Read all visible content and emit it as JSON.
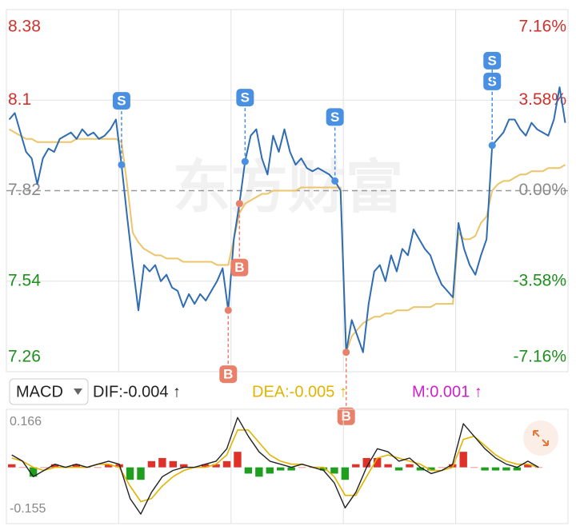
{
  "chart_data": [
    {
      "type": "line",
      "watermark": "东方财富",
      "ylim": [
        7.26,
        8.38
      ],
      "yticks": [
        7.26,
        7.54,
        7.82,
        8.1,
        8.38
      ],
      "y2lim": [
        -7.16,
        7.16
      ],
      "y2ticks": [
        {
          "value": -7.16,
          "label": "-7.16%"
        },
        {
          "value": -3.58,
          "label": "-3.58%"
        },
        {
          "value": 0,
          "label": "0.00%"
        },
        {
          "value": 3.58,
          "label": "3.58%"
        },
        {
          "value": 7.16,
          "label": "7.16%"
        }
      ],
      "base": 7.82,
      "grid": true,
      "up_color": "#d0312d",
      "down_color": "#1f8f1f",
      "flat_color": "#8a8a8a",
      "series": [
        {
          "color": "#2f6db3",
          "values": [
            8.04,
            8.06,
            8.0,
            7.94,
            7.92,
            7.84,
            7.92,
            7.95,
            7.94,
            7.98,
            7.99,
            8.0,
            7.98,
            8.01,
            7.99,
            8.0,
            7.98,
            7.99,
            8.01,
            8.04,
            7.9,
            7.74,
            7.59,
            7.45,
            7.59,
            7.57,
            7.59,
            7.54,
            7.56,
            7.52,
            7.51,
            7.46,
            7.5,
            7.47,
            7.5,
            7.48,
            7.51,
            7.54,
            7.58,
            7.45,
            7.67,
            7.78,
            7.91,
            7.99,
            8.01,
            7.92,
            7.87,
            7.99,
            7.94,
            8.01,
            7.94,
            7.9,
            7.92,
            7.89,
            7.88,
            7.89,
            7.88,
            7.87,
            7.85,
            7.82,
            7.32,
            7.42,
            7.37,
            7.32,
            7.47,
            7.57,
            7.59,
            7.54,
            7.62,
            7.57,
            7.64,
            7.62,
            7.7,
            7.67,
            7.64,
            7.62,
            7.57,
            7.53,
            7.51,
            7.49,
            7.72,
            7.64,
            7.59,
            7.56,
            7.62,
            7.67,
            7.96,
            7.98,
            8.0,
            8.04,
            8.04,
            8.01,
            7.99,
            8.03,
            8.01,
            8.0,
            7.99,
            8.04,
            8.14,
            8.03
          ]
        },
        {
          "color": "#ecc46a",
          "values": [
            8.01,
            8.0,
            7.99,
            7.98,
            7.98,
            7.97,
            7.97,
            7.97,
            7.97,
            7.97,
            7.97,
            7.97,
            7.98,
            7.98,
            7.98,
            7.98,
            7.98,
            7.98,
            7.98,
            7.98,
            7.97,
            7.84,
            7.69,
            7.66,
            7.64,
            7.63,
            7.62,
            7.62,
            7.61,
            7.61,
            7.61,
            7.6,
            7.6,
            7.6,
            7.6,
            7.6,
            7.6,
            7.59,
            7.59,
            7.59,
            7.67,
            7.75,
            7.78,
            7.79,
            7.8,
            7.81,
            7.81,
            7.82,
            7.82,
            7.82,
            7.82,
            7.82,
            7.83,
            7.83,
            7.83,
            7.83,
            7.83,
            7.83,
            7.83,
            7.83,
            7.32,
            7.37,
            7.39,
            7.41,
            7.42,
            7.43,
            7.43,
            7.44,
            7.44,
            7.45,
            7.45,
            7.45,
            7.46,
            7.46,
            7.46,
            7.46,
            7.47,
            7.47,
            7.47,
            7.47,
            7.69,
            7.67,
            7.67,
            7.68,
            7.72,
            7.74,
            7.82,
            7.84,
            7.85,
            7.85,
            7.86,
            7.87,
            7.87,
            7.88,
            7.88,
            7.88,
            7.89,
            7.89,
            7.89,
            7.9
          ]
        }
      ],
      "markers": [
        {
          "label": "S",
          "x": 20,
          "value": 7.9,
          "color": "#4a90e2"
        },
        {
          "label": "B",
          "x": 39,
          "value": 7.45,
          "color": "#e8806a"
        },
        {
          "label": "B",
          "x": 41,
          "value": 7.78,
          "color": "#e8806a"
        },
        {
          "label": "S",
          "x": 42,
          "value": 7.91,
          "color": "#4a90e2"
        },
        {
          "label": "S",
          "x": 58,
          "value": 7.85,
          "color": "#4a90e2"
        },
        {
          "label": "B",
          "x": 60,
          "value": 7.32,
          "color": "#e8806a"
        },
        {
          "label": "S",
          "x": 86,
          "value": 7.96,
          "color": "#4a90e2"
        },
        {
          "label": "S",
          "x": 86,
          "value": 7.96,
          "color": "#4a90e2"
        }
      ]
    },
    {
      "type": "macd",
      "indicator": "MACD",
      "ylim": [
        -0.155,
        0.166
      ],
      "yticks": [
        -0.155,
        0.166
      ],
      "up_color": "#e0302a",
      "down_color": "#1f9e1f",
      "series": [
        {
          "name": "DIF:-0.004 ↑",
          "color": "#222222",
          "values": [
            0.04,
            0.02,
            -0.03,
            -0.01,
            0.01,
            0.0,
            0.01,
            0.0,
            0.01,
            0.02,
            0.01,
            -0.1,
            -0.15,
            -0.08,
            -0.03,
            -0.01,
            0.0,
            0.0,
            0.01,
            0.02,
            0.06,
            0.16,
            0.1,
            0.05,
            0.02,
            0.01,
            0.0,
            0.01,
            0.0,
            -0.01,
            -0.05,
            -0.13,
            -0.08,
            0.0,
            0.06,
            0.05,
            0.02,
            0.03,
            0.0,
            -0.02,
            -0.01,
            0.01,
            0.14,
            0.1,
            0.06,
            0.03,
            0.01,
            0.0,
            0.02,
            0.0
          ]
        },
        {
          "name": "DEA:-0.005 ↑",
          "color": "#e2b400",
          "values": [
            0.03,
            0.02,
            0.0,
            -0.01,
            0.0,
            0.0,
            0.0,
            0.0,
            0.01,
            0.01,
            0.0,
            -0.06,
            -0.11,
            -0.1,
            -0.06,
            -0.03,
            -0.01,
            0.0,
            0.0,
            0.01,
            0.04,
            0.12,
            0.12,
            0.08,
            0.04,
            0.02,
            0.01,
            0.01,
            0.0,
            0.0,
            -0.03,
            -0.09,
            -0.09,
            -0.03,
            0.03,
            0.04,
            0.03,
            0.02,
            0.01,
            -0.01,
            -0.01,
            0.0,
            0.09,
            0.1,
            0.07,
            0.04,
            0.02,
            0.01,
            0.01,
            0.0
          ]
        },
        {
          "name": "M:0.001 ↑",
          "color": "#cc22cc",
          "values": [
            0.01,
            0.0,
            -0.03,
            0.0,
            0.01,
            0.0,
            0.01,
            0.0,
            0.0,
            0.01,
            0.01,
            -0.04,
            -0.04,
            0.02,
            0.03,
            0.02,
            0.01,
            0.0,
            0.01,
            0.01,
            0.02,
            0.05,
            -0.02,
            -0.03,
            -0.02,
            -0.01,
            -0.01,
            0.0,
            0.0,
            -0.01,
            -0.02,
            -0.04,
            0.01,
            0.03,
            0.03,
            0.01,
            -0.01,
            0.01,
            -0.01,
            -0.01,
            0.0,
            0.01,
            0.05,
            0.0,
            -0.01,
            -0.01,
            -0.01,
            -0.01,
            0.01,
            0.0
          ]
        }
      ]
    }
  ]
}
